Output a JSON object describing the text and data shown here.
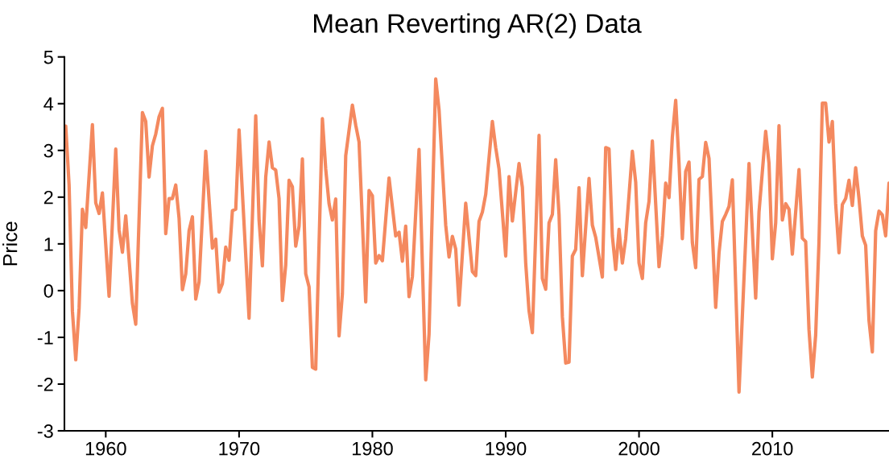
{
  "chart_data": {
    "type": "line",
    "title": "Mean Reverting AR(2) Data",
    "ylabel": "Price",
    "xlim": [
      1956.9,
      2018.75
    ],
    "xticks": [
      1960,
      1970,
      1980,
      1990,
      2000,
      2010
    ],
    "ylim": [
      -3,
      5
    ],
    "yticks": [
      -3,
      -2,
      -1,
      0,
      1,
      2,
      3,
      4,
      5
    ],
    "grid": false,
    "marker": "none",
    "line_style": "solid",
    "series": [
      {
        "color": "#f4895f",
        "x": [
          1957.0,
          1957.25,
          1957.5,
          1957.75,
          1958.0,
          1958.25,
          1958.5,
          1959.0,
          1959.25,
          1959.5,
          1959.75,
          1960.25,
          1960.75,
          1961.0,
          1961.25,
          1961.5,
          1962.0,
          1962.25,
          1962.75,
          1963.0,
          1963.25,
          1963.5,
          1963.75,
          1964.0,
          1964.25,
          1964.5,
          1964.75,
          1965.0,
          1965.25,
          1965.5,
          1965.75,
          1966.0,
          1966.25,
          1966.5,
          1966.75,
          1967.0,
          1967.5,
          1968.0,
          1968.25,
          1968.5,
          1968.75,
          1969.0,
          1969.25,
          1969.5,
          1969.75,
          1970.0,
          1970.75,
          1971.25,
          1971.5,
          1971.75,
          1972.0,
          1972.25,
          1972.5,
          1972.75,
          1973.0,
          1973.25,
          1973.5,
          1973.75,
          1974.0,
          1974.25,
          1974.5,
          1974.75,
          1975.0,
          1975.25,
          1975.5,
          1975.75,
          1976.25,
          1976.5,
          1976.75,
          1977.0,
          1977.25,
          1977.5,
          1977.75,
          1978.0,
          1978.5,
          1978.75,
          1979.0,
          1979.5,
          1979.75,
          1980.0,
          1980.25,
          1980.5,
          1980.75,
          1981.25,
          1981.75,
          1982.0,
          1982.25,
          1982.5,
          1982.75,
          1983.0,
          1983.5,
          1984.0,
          1984.25,
          1984.75,
          1985.0,
          1985.5,
          1985.75,
          1986.0,
          1986.25,
          1986.5,
          1987.0,
          1987.5,
          1987.75,
          1988.0,
          1988.25,
          1988.5,
          1989.0,
          1989.25,
          1989.5,
          1990.0,
          1990.25,
          1990.5,
          1991.0,
          1991.25,
          1991.5,
          1991.75,
          1992.0,
          1992.5,
          1992.75,
          1993.0,
          1993.25,
          1993.5,
          1993.75,
          1994.0,
          1994.25,
          1994.5,
          1994.75,
          1995.0,
          1995.25,
          1995.5,
          1995.75,
          1996.25,
          1996.5,
          1996.75,
          1997.25,
          1997.5,
          1997.75,
          1998.0,
          1998.25,
          1998.5,
          1998.75,
          1999.0,
          1999.5,
          1999.75,
          2000.0,
          2000.25,
          2000.5,
          2000.75,
          2001.0,
          2001.5,
          2001.75,
          2002.0,
          2002.25,
          2002.5,
          2002.75,
          2003.0,
          2003.25,
          2003.5,
          2003.75,
          2004.0,
          2004.25,
          2004.5,
          2004.75,
          2005.0,
          2005.25,
          2005.75,
          2006.0,
          2006.25,
          2006.5,
          2006.75,
          2007.0,
          2007.5,
          2008.25,
          2008.75,
          2009.0,
          2009.5,
          2009.75,
          2010.0,
          2010.25,
          2010.5,
          2010.75,
          2011.0,
          2011.25,
          2011.5,
          2012.0,
          2012.25,
          2012.5,
          2012.75,
          2013.0,
          2013.25,
          2013.5,
          2013.75,
          2014.0,
          2014.25,
          2014.5,
          2014.75,
          2015.0,
          2015.25,
          2015.5,
          2015.75,
          2016.0,
          2016.25,
          2016.5,
          2016.75,
          2017.0,
          2017.25,
          2017.5,
          2017.75,
          2018.0,
          2018.25,
          2018.5,
          2018.75
        ],
        "values": [
          3.52,
          2.26,
          -0.44,
          -1.48,
          -0.38,
          1.74,
          1.35,
          3.55,
          1.88,
          1.65,
          2.09,
          -0.12,
          3.03,
          1.3,
          0.82,
          1.6,
          -0.27,
          -0.72,
          3.81,
          3.62,
          2.43,
          3.1,
          3.35,
          3.72,
          3.9,
          1.22,
          1.97,
          1.97,
          2.26,
          1.55,
          0.02,
          0.36,
          1.28,
          1.58,
          -0.18,
          0.19,
          2.98,
          0.91,
          1.1,
          -0.03,
          0.15,
          0.93,
          0.65,
          1.71,
          1.74,
          3.44,
          -0.59,
          3.74,
          1.51,
          0.53,
          2.43,
          3.18,
          2.63,
          2.58,
          1.97,
          -0.21,
          0.55,
          2.36,
          2.22,
          0.95,
          1.38,
          2.82,
          0.36,
          0.08,
          -1.64,
          -1.68,
          3.68,
          2.6,
          1.86,
          1.51,
          1.96,
          -0.97,
          -0.07,
          2.89,
          3.97,
          3.54,
          3.18,
          -0.24,
          2.14,
          2.03,
          0.59,
          0.75,
          0.64,
          2.41,
          1.17,
          1.25,
          0.63,
          1.38,
          -0.13,
          0.3,
          3.02,
          -1.91,
          -0.93,
          4.53,
          3.87,
          1.4,
          0.72,
          1.16,
          0.89,
          -0.31,
          1.87,
          0.41,
          0.32,
          1.48,
          1.68,
          2.06,
          3.62,
          3.06,
          2.6,
          0.74,
          2.44,
          1.49,
          2.72,
          2.21,
          0.59,
          -0.43,
          -0.9,
          3.32,
          0.26,
          0.03,
          1.45,
          1.63,
          2.8,
          1.63,
          -0.56,
          -1.55,
          -1.53,
          0.74,
          0.88,
          2.2,
          0.32,
          2.4,
          1.4,
          1.14,
          0.29,
          3.06,
          3.03,
          1.17,
          0.45,
          1.31,
          0.59,
          1.11,
          2.98,
          2.32,
          0.59,
          0.26,
          1.45,
          1.91,
          3.2,
          0.51,
          1.17,
          2.3,
          1.99,
          3.29,
          4.07,
          2.72,
          1.11,
          2.55,
          2.75,
          1.03,
          0.49,
          2.38,
          2.44,
          3.17,
          2.83,
          -0.36,
          0.81,
          1.48,
          1.63,
          1.8,
          2.37,
          -2.17,
          2.72,
          -0.16,
          1.68,
          3.41,
          2.72,
          0.68,
          1.45,
          3.53,
          1.51,
          1.86,
          1.74,
          0.78,
          2.59,
          1.12,
          1.05,
          -0.84,
          -1.85,
          -0.95,
          1.05,
          4.01,
          4.01,
          3.18,
          3.62,
          1.86,
          0.81,
          1.84,
          1.97,
          2.36,
          1.82,
          2.63,
          1.97,
          1.17,
          0.97,
          -0.64,
          -1.31,
          1.28,
          1.7,
          1.62,
          1.17,
          2.3
        ]
      }
    ]
  }
}
